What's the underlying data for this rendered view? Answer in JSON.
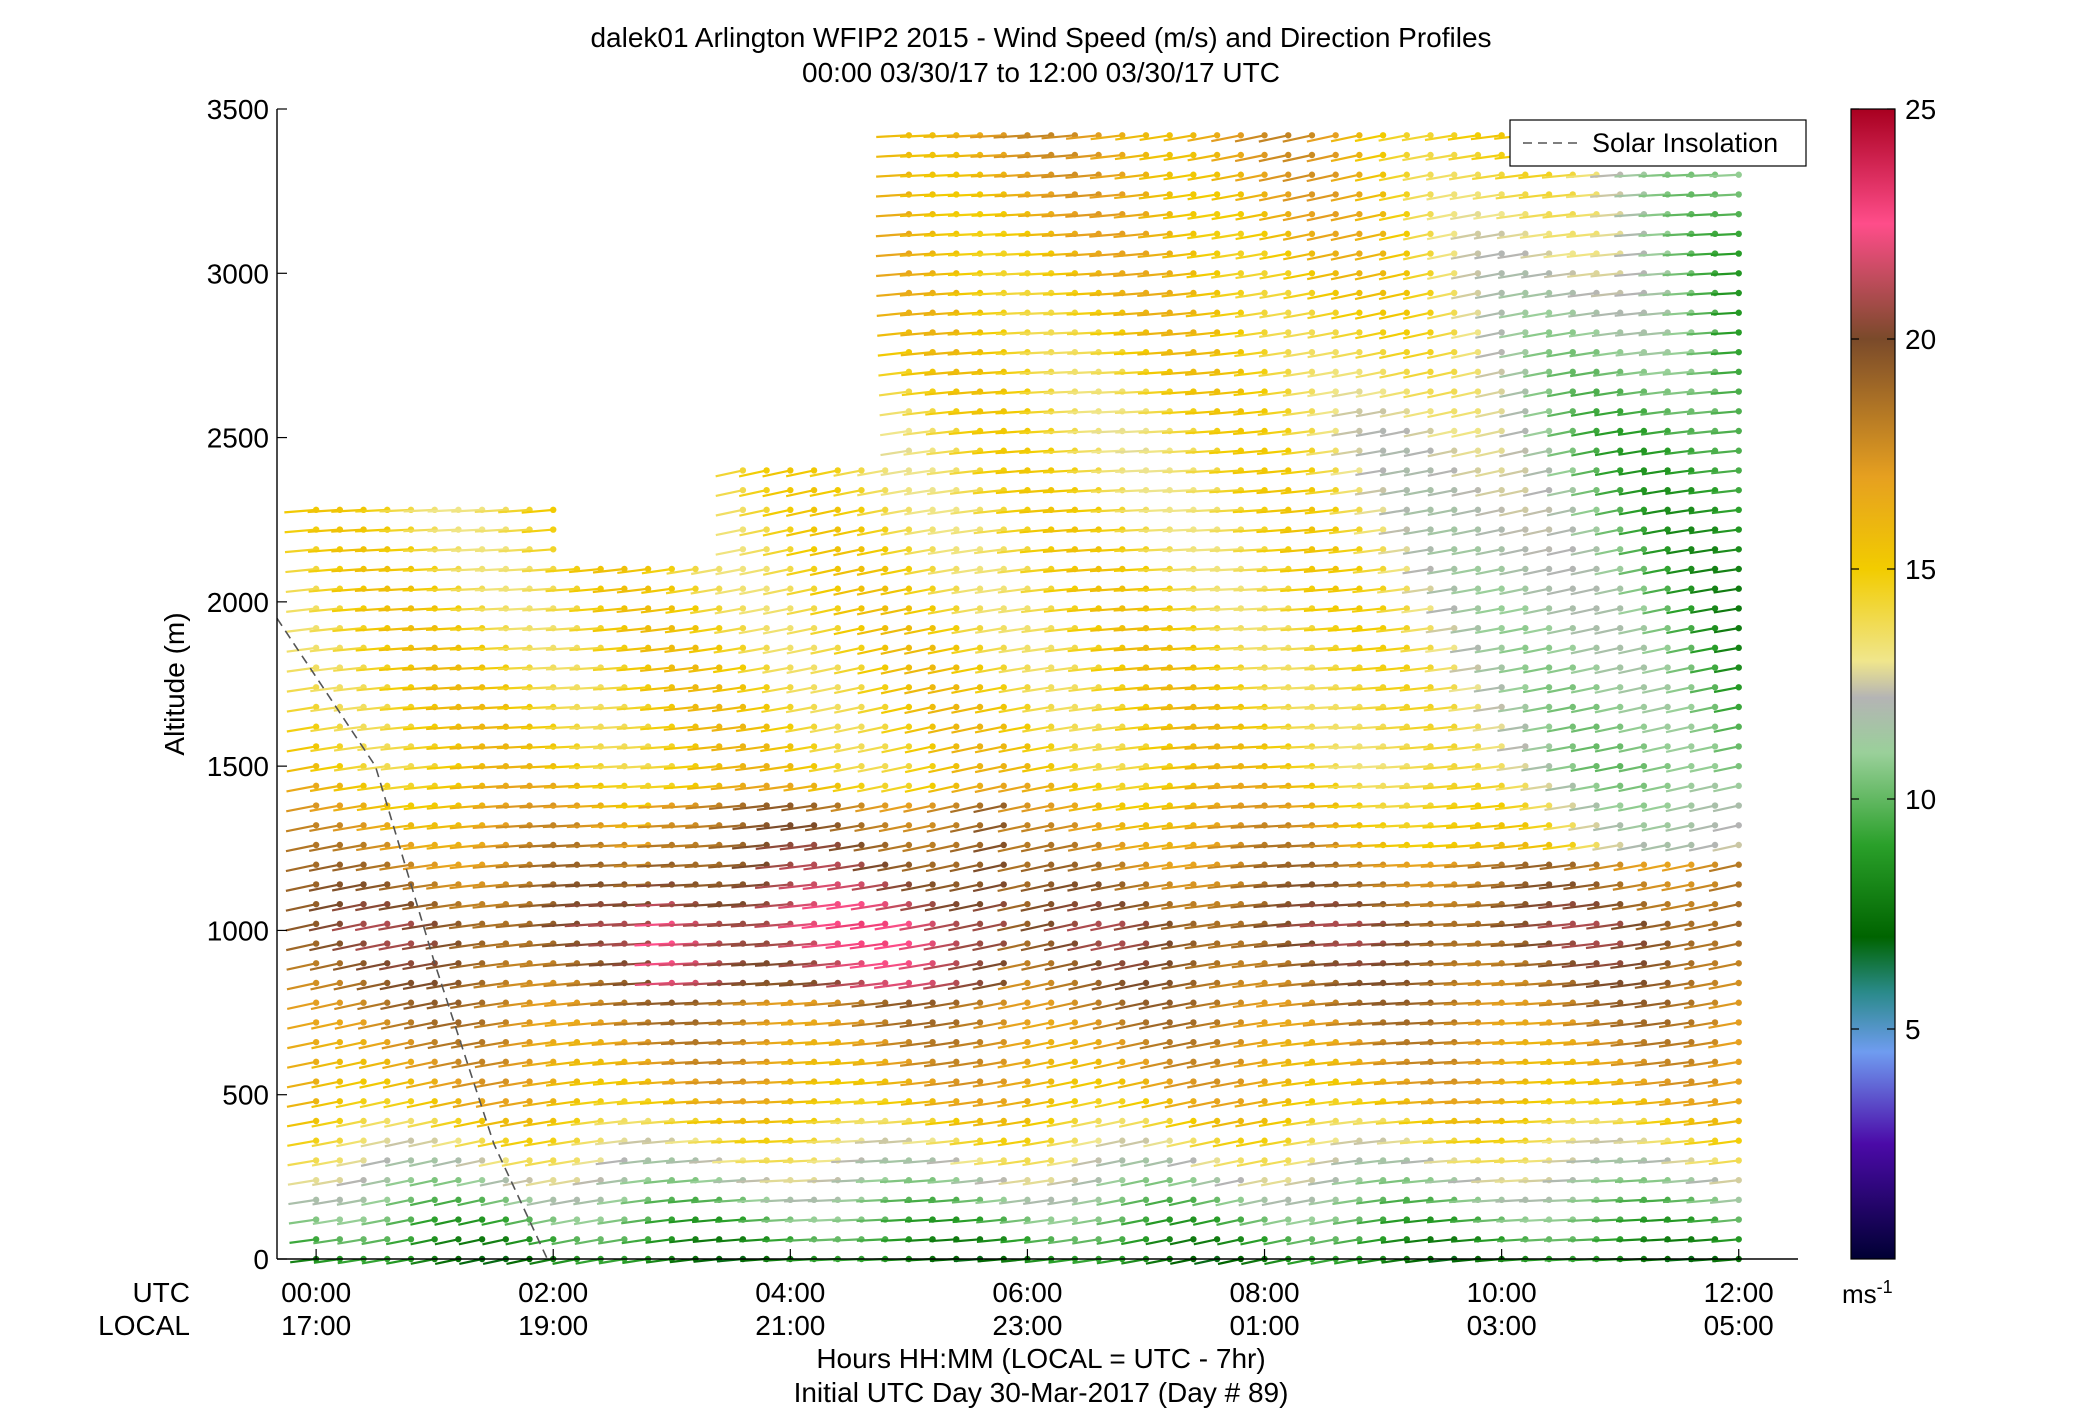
{
  "chart_data": {
    "type": "wind-barb-profile",
    "title": "dalek01 Arlington WFIP2 2015 - Wind Speed (m/s) and Direction Profiles",
    "subtitle": "00:00 03/30/17 to 12:00 03/30/17  UTC",
    "ylabel": "Altitude (m)",
    "xlabel": "Hours HH:MM  (LOCAL = UTC - 7hr)",
    "xlabel2": "Initial UTC Day 30-Mar-2017 (Day # 89)",
    "row_label_utc": "UTC",
    "row_label_local": "LOCAL",
    "ylim": [
      0,
      3500
    ],
    "yticks": [
      0,
      500,
      1000,
      1500,
      2000,
      2500,
      3000,
      3500
    ],
    "xlim_hours": [
      -0.33,
      12.5
    ],
    "xticks_hours": [
      0,
      2,
      4,
      6,
      8,
      10,
      12
    ],
    "xtick_utc": [
      "00:00",
      "02:00",
      "04:00",
      "06:00",
      "08:00",
      "10:00",
      "12:00"
    ],
    "xtick_local": [
      "17:00",
      "19:00",
      "21:00",
      "23:00",
      "01:00",
      "03:00",
      "05:00"
    ],
    "legend": {
      "label": "Solar Insolation",
      "position": "top-right"
    },
    "solar_insolation_line": {
      "x_hours": [
        -0.33,
        0.5,
        1.0,
        1.5,
        1.95
      ],
      "altitude_m": [
        1950,
        1500,
        900,
        350,
        0
      ]
    },
    "colorbar": {
      "unit_label": "ms-1",
      "range": [
        0,
        25
      ],
      "ticks": [
        5,
        10,
        15,
        20,
        25
      ],
      "stops": [
        {
          "v": 0,
          "color": "#000033"
        },
        {
          "v": 2.5,
          "color": "#4b0aa8"
        },
        {
          "v": 4.5,
          "color": "#6f9cf0"
        },
        {
          "v": 5.8,
          "color": "#2a8a8a"
        },
        {
          "v": 7,
          "color": "#006400"
        },
        {
          "v": 9,
          "color": "#2aa02a"
        },
        {
          "v": 11,
          "color": "#9ad09a"
        },
        {
          "v": 12.2,
          "color": "#b4b4b4"
        },
        {
          "v": 13,
          "color": "#f0e68c"
        },
        {
          "v": 15,
          "color": "#f2cc00"
        },
        {
          "v": 17,
          "color": "#e6a020"
        },
        {
          "v": 20,
          "color": "#7a4a2a"
        },
        {
          "v": 22.5,
          "color": "#ff4d8a"
        },
        {
          "v": 25,
          "color": "#a80020"
        }
      ]
    },
    "profiles": {
      "time_step_hours": 0.2,
      "altitude_step_m": 60,
      "start_hour": 0,
      "end_hour": 12,
      "min_altitude_m": 0,
      "speed_by_layer_m_s": [
        {
          "z": 0,
          "speed": 8
        },
        {
          "z": 200,
          "speed": 11
        },
        {
          "z": 500,
          "speed": 16
        },
        {
          "z": 1000,
          "speed": 20
        },
        {
          "z": 1500,
          "speed": 15
        },
        {
          "z": 2500,
          "speed": 14
        },
        {
          "z": 3500,
          "speed": 17
        }
      ],
      "direction_note": "barbs point toward the left (westerly component) with slight tilt"
    }
  }
}
